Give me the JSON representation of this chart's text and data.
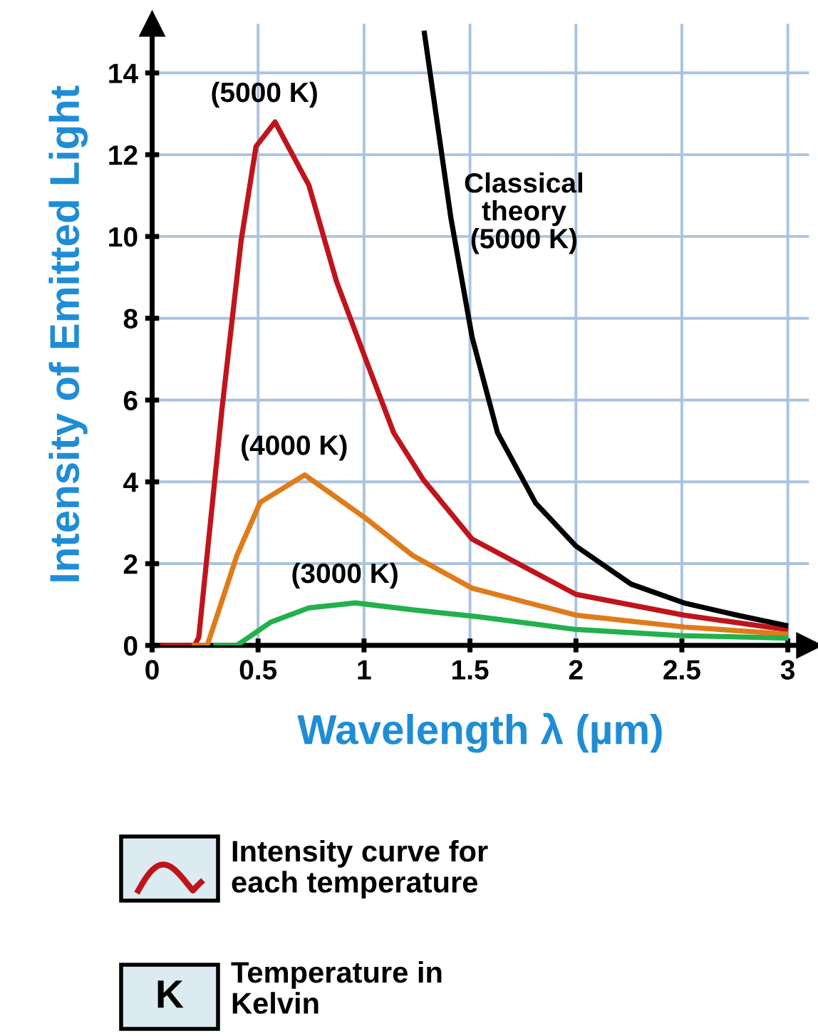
{
  "chart_data": {
    "type": "line",
    "xlabel": "Wavelength λ (µm)",
    "ylabel": "Intensity of Emitted Light",
    "xlim": [
      0,
      3.1
    ],
    "ylim": [
      0,
      15.2
    ],
    "xticks": [
      0,
      0.5,
      1,
      1.5,
      2,
      2.5,
      3
    ],
    "yticks": [
      0,
      2,
      4,
      6,
      8,
      10,
      12,
      14
    ],
    "grid": true,
    "marker": "none",
    "line_style": "solid",
    "series": [
      {
        "name": "(5000 K)",
        "color": "#c0141c",
        "x": [
          0.05,
          0.2,
          0.22,
          0.33,
          0.42,
          0.49,
          0.58,
          0.74,
          0.87,
          1.01,
          1.14,
          1.28,
          1.51,
          2.0,
          2.51,
          2.99
        ],
        "values": [
          0,
          0,
          0.2,
          5.8,
          9.9,
          12.2,
          12.8,
          11.25,
          8.9,
          6.97,
          5.2,
          4.05,
          2.6,
          1.25,
          0.74,
          0.39
        ]
      },
      {
        "name": "(4000 K)",
        "color": "#e07b1a",
        "x": [
          0.2,
          0.26,
          0.4,
          0.51,
          0.72,
          1.01,
          1.23,
          1.51,
          2.0,
          2.51,
          2.99
        ],
        "values": [
          0,
          0,
          2.2,
          3.5,
          4.17,
          3.1,
          2.2,
          1.4,
          0.74,
          0.45,
          0.28
        ]
      },
      {
        "name": "(3000 K)",
        "color": "#22b14c",
        "x": [
          0.3,
          0.4,
          0.56,
          0.74,
          0.96,
          1.23,
          1.54,
          2.0,
          2.5,
          2.99
        ],
        "values": [
          0,
          0,
          0.57,
          0.92,
          1.04,
          0.87,
          0.7,
          0.39,
          0.24,
          0.18
        ]
      },
      {
        "name": "Classical\ntheory\n(5000 K)",
        "color": "#000000",
        "x": [
          1.285,
          1.41,
          1.51,
          1.63,
          1.81,
          2.0,
          2.26,
          2.51,
          2.76,
          2.99
        ],
        "values": [
          14.97,
          10.45,
          7.54,
          5.2,
          3.48,
          2.43,
          1.5,
          1.04,
          0.74,
          0.49
        ]
      }
    ],
    "annotations": [
      "Intensity curve for\neach temperature",
      "K",
      "Temperature in\nKelvin"
    ]
  }
}
